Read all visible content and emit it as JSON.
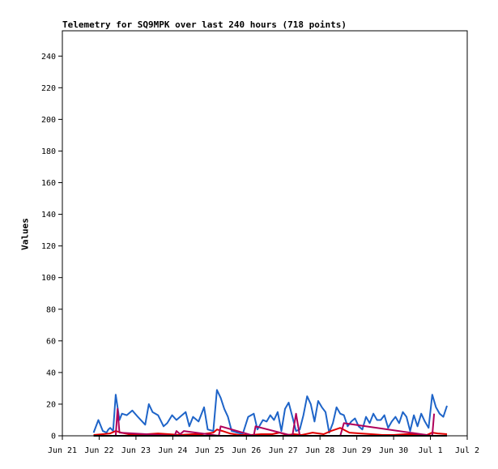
{
  "chart_data": {
    "type": "line",
    "title": "Telemetry for SQ9MPK over last 240 hours (718 points)",
    "xlabel": "",
    "ylabel": "Values",
    "x_ticks": [
      "Jun 21",
      "Jun 22",
      "Jun 23",
      "Jun 24",
      "Jun 25",
      "Jun 26",
      "Jun 27",
      "Jun 28",
      "Jun 29",
      "Jun 30",
      "Jul 1",
      "Jul 2"
    ],
    "xlim": [
      0,
      11
    ],
    "ylim": [
      0,
      256
    ],
    "y_ticks": [
      0,
      20,
      40,
      60,
      80,
      100,
      120,
      140,
      160,
      180,
      200,
      220,
      240
    ],
    "grid": false,
    "colors": {
      "series_a": "#1e64c8",
      "series_b": "#e00000",
      "series_c": "#b0005a",
      "series_d": "#000000"
    },
    "series": [
      {
        "color": "#1e64c8",
        "x": [
          0.85,
          0.98,
          1.1,
          1.2,
          1.25,
          1.3,
          1.38,
          1.45,
          1.55,
          1.62,
          1.75,
          1.9,
          2.05,
          2.25,
          2.35,
          2.45,
          2.6,
          2.75,
          2.85,
          2.98,
          3.1,
          3.25,
          3.35,
          3.45,
          3.55,
          3.7,
          3.85,
          3.95,
          4.1,
          4.2,
          4.3,
          4.4,
          4.5,
          4.6,
          4.75,
          4.9,
          5.05,
          5.2,
          5.3,
          5.45,
          5.55,
          5.65,
          5.75,
          5.85,
          5.95,
          6.05,
          6.15,
          6.25,
          6.35,
          6.45,
          6.55,
          6.65,
          6.75,
          6.85,
          6.95,
          7.05,
          7.15,
          7.25,
          7.35,
          7.45,
          7.55,
          7.65,
          7.75,
          7.85,
          7.95,
          8.05,
          8.15,
          8.25,
          8.35,
          8.45,
          8.55,
          8.65,
          8.75,
          8.85,
          8.95,
          9.05,
          9.15,
          9.25,
          9.35,
          9.45,
          9.55,
          9.65,
          9.75,
          9.85,
          9.95,
          10.05,
          10.15,
          10.25,
          10.35,
          10.45
        ],
        "values": [
          2,
          10,
          3,
          2,
          4,
          5,
          3,
          26,
          10,
          14,
          13,
          16,
          12,
          7,
          20,
          15,
          13,
          6,
          8,
          13,
          10,
          13,
          15,
          6,
          12,
          9,
          18,
          4,
          3,
          29,
          24,
          17,
          12,
          3,
          2,
          1,
          12,
          14,
          4,
          10,
          9,
          13,
          10,
          15,
          3,
          17,
          21,
          12,
          3,
          4,
          13,
          25,
          20,
          9,
          22,
          18,
          15,
          2,
          8,
          18,
          14,
          13,
          6,
          9,
          11,
          6,
          4,
          12,
          8,
          14,
          10,
          10,
          13,
          5,
          9,
          12,
          8,
          15,
          12,
          3,
          13,
          6,
          14,
          9,
          5,
          26,
          18,
          14,
          12,
          19
        ]
      },
      {
        "color": "#e00000",
        "x": [
          0.85,
          1.1,
          1.3,
          1.45,
          1.6,
          1.8,
          2.0,
          2.3,
          2.6,
          2.9,
          3.2,
          3.5,
          3.8,
          4.1,
          4.2,
          4.35,
          4.55,
          4.8,
          5.1,
          5.4,
          5.7,
          5.9,
          6.1,
          6.3,
          6.5,
          6.8,
          7.1,
          7.3,
          7.55,
          7.8,
          8.1,
          8.4,
          8.7,
          9.0,
          9.3,
          9.6,
          9.9,
          10.05,
          10.2,
          10.45
        ],
        "values": [
          0.5,
          1,
          1.5,
          3,
          2,
          1,
          0.5,
          1,
          1.5,
          1,
          0.5,
          1,
          1,
          2,
          4,
          3,
          1.5,
          0.5,
          0.5,
          1,
          1,
          2,
          0.5,
          1,
          0.5,
          2,
          1,
          3,
          5,
          2,
          1.5,
          1,
          0.5,
          0.5,
          1,
          1,
          0.5,
          2,
          1.5,
          1
        ]
      },
      {
        "color": "#b0005a",
        "x": [
          1.45,
          1.5,
          1.55,
          3.05,
          3.1,
          3.2,
          3.3,
          4.25,
          4.3,
          5.2,
          5.25,
          6.25,
          6.35,
          6.45,
          7.55,
          7.65,
          10.05,
          10.1
        ],
        "values": [
          0,
          17,
          2,
          0,
          3,
          1,
          3,
          0,
          6,
          0,
          6,
          0,
          14,
          0,
          0,
          8,
          0,
          14
        ]
      },
      {
        "color": "#000000",
        "x": [
          0.85,
          10.45
        ],
        "values": [
          0,
          0
        ]
      }
    ]
  }
}
